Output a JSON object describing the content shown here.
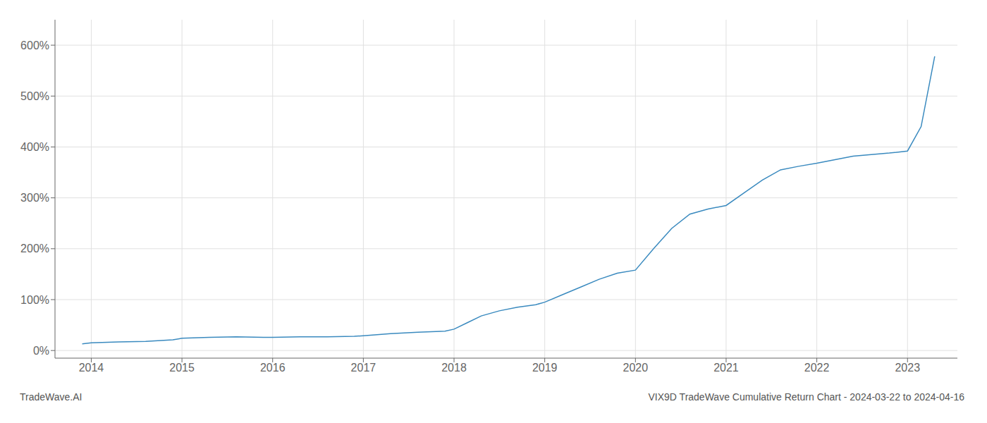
{
  "chart_data": {
    "type": "line",
    "title": "VIX9D TradeWave Cumulative Return Chart - 2024-03-22 to 2024-04-16",
    "annotations": [
      "TradeWave.AI"
    ],
    "x": [
      2013.9,
      2014.0,
      2014.3,
      2014.6,
      2014.9,
      2015.0,
      2015.3,
      2015.6,
      2015.9,
      2016.0,
      2016.3,
      2016.6,
      2016.9,
      2017.0,
      2017.3,
      2017.6,
      2017.9,
      2018.0,
      2018.15,
      2018.3,
      2018.5,
      2018.7,
      2018.9,
      2019.0,
      2019.2,
      2019.4,
      2019.6,
      2019.8,
      2020.0,
      2020.2,
      2020.4,
      2020.6,
      2020.8,
      2021.0,
      2021.2,
      2021.4,
      2021.6,
      2021.8,
      2022.0,
      2022.2,
      2022.4,
      2022.6,
      2022.8,
      2023.0,
      2023.15,
      2023.3
    ],
    "values": [
      13,
      15,
      17,
      18,
      21,
      24,
      26,
      27,
      26,
      26,
      27,
      27,
      28,
      29,
      33,
      36,
      38,
      42,
      55,
      68,
      78,
      85,
      90,
      95,
      110,
      125,
      140,
      152,
      158,
      200,
      240,
      268,
      278,
      285,
      310,
      335,
      355,
      362,
      368,
      375,
      382,
      385,
      388,
      392,
      440,
      578
    ],
    "color": "#3a8abf",
    "xlim": [
      2013.6,
      2023.55
    ],
    "ylim": [
      -15,
      650
    ],
    "xticks": [
      2014,
      2015,
      2016,
      2017,
      2018,
      2019,
      2020,
      2021,
      2022,
      2023
    ],
    "yticks": [
      {
        "value": 0,
        "label": "0%"
      },
      {
        "value": 100,
        "label": "100%"
      },
      {
        "value": 200,
        "label": "200%"
      },
      {
        "value": 300,
        "label": "300%"
      },
      {
        "value": 400,
        "label": "400%"
      },
      {
        "value": 500,
        "label": "500%"
      },
      {
        "value": 600,
        "label": "600%"
      }
    ],
    "grid": true
  }
}
